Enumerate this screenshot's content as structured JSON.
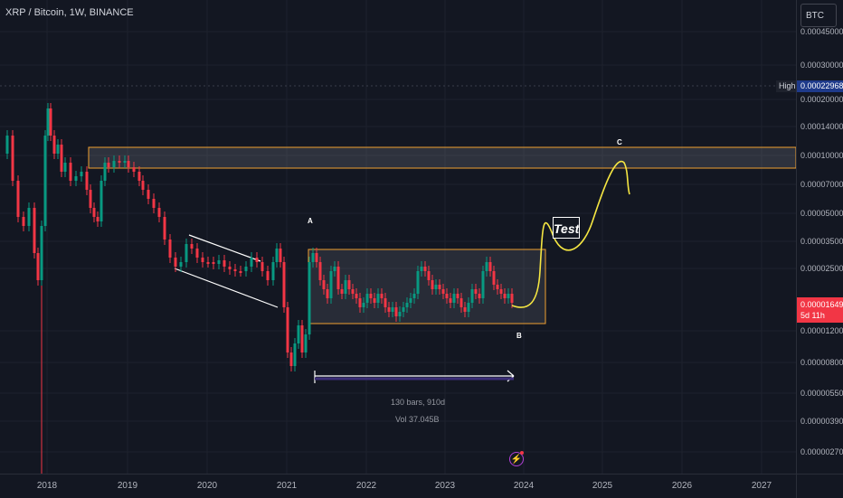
{
  "header": {
    "title": "XRP / Bitcoin, 1W, BINANCE"
  },
  "currency_button": {
    "label": "BTC"
  },
  "price_axis": {
    "ticks": [
      "0.00045000",
      "0.00030000",
      "0.00020000",
      "0.00014000",
      "0.00010000",
      "0.00007000",
      "0.00005000",
      "0.00003500",
      "0.00002500",
      "0.00001200",
      "0.00000800",
      "0.00000550",
      "0.00000390",
      "0.00000270"
    ],
    "high_tag": "High",
    "high_value": "0.00022968",
    "current_price": "0.00001649",
    "countdown": "5d 11h"
  },
  "time_axis": {
    "ticks": [
      "2018",
      "2019",
      "2020",
      "2021",
      "2022",
      "2023",
      "2024",
      "2025",
      "2026",
      "2027"
    ]
  },
  "annotations": {
    "label_a": "A",
    "label_b": "B",
    "label_c": "C",
    "test_label": "Test",
    "measure_bars": "130 bars, 910d",
    "measure_vol": "Vol 37.045B"
  },
  "colors": {
    "background": "#131722",
    "candle_up": "#089981",
    "candle_down": "#f23645",
    "zone_border": "#f0a030",
    "projection": "#f5e642",
    "measure_line": "#7e57c2"
  },
  "icons": {
    "flash": "flash-icon"
  }
}
